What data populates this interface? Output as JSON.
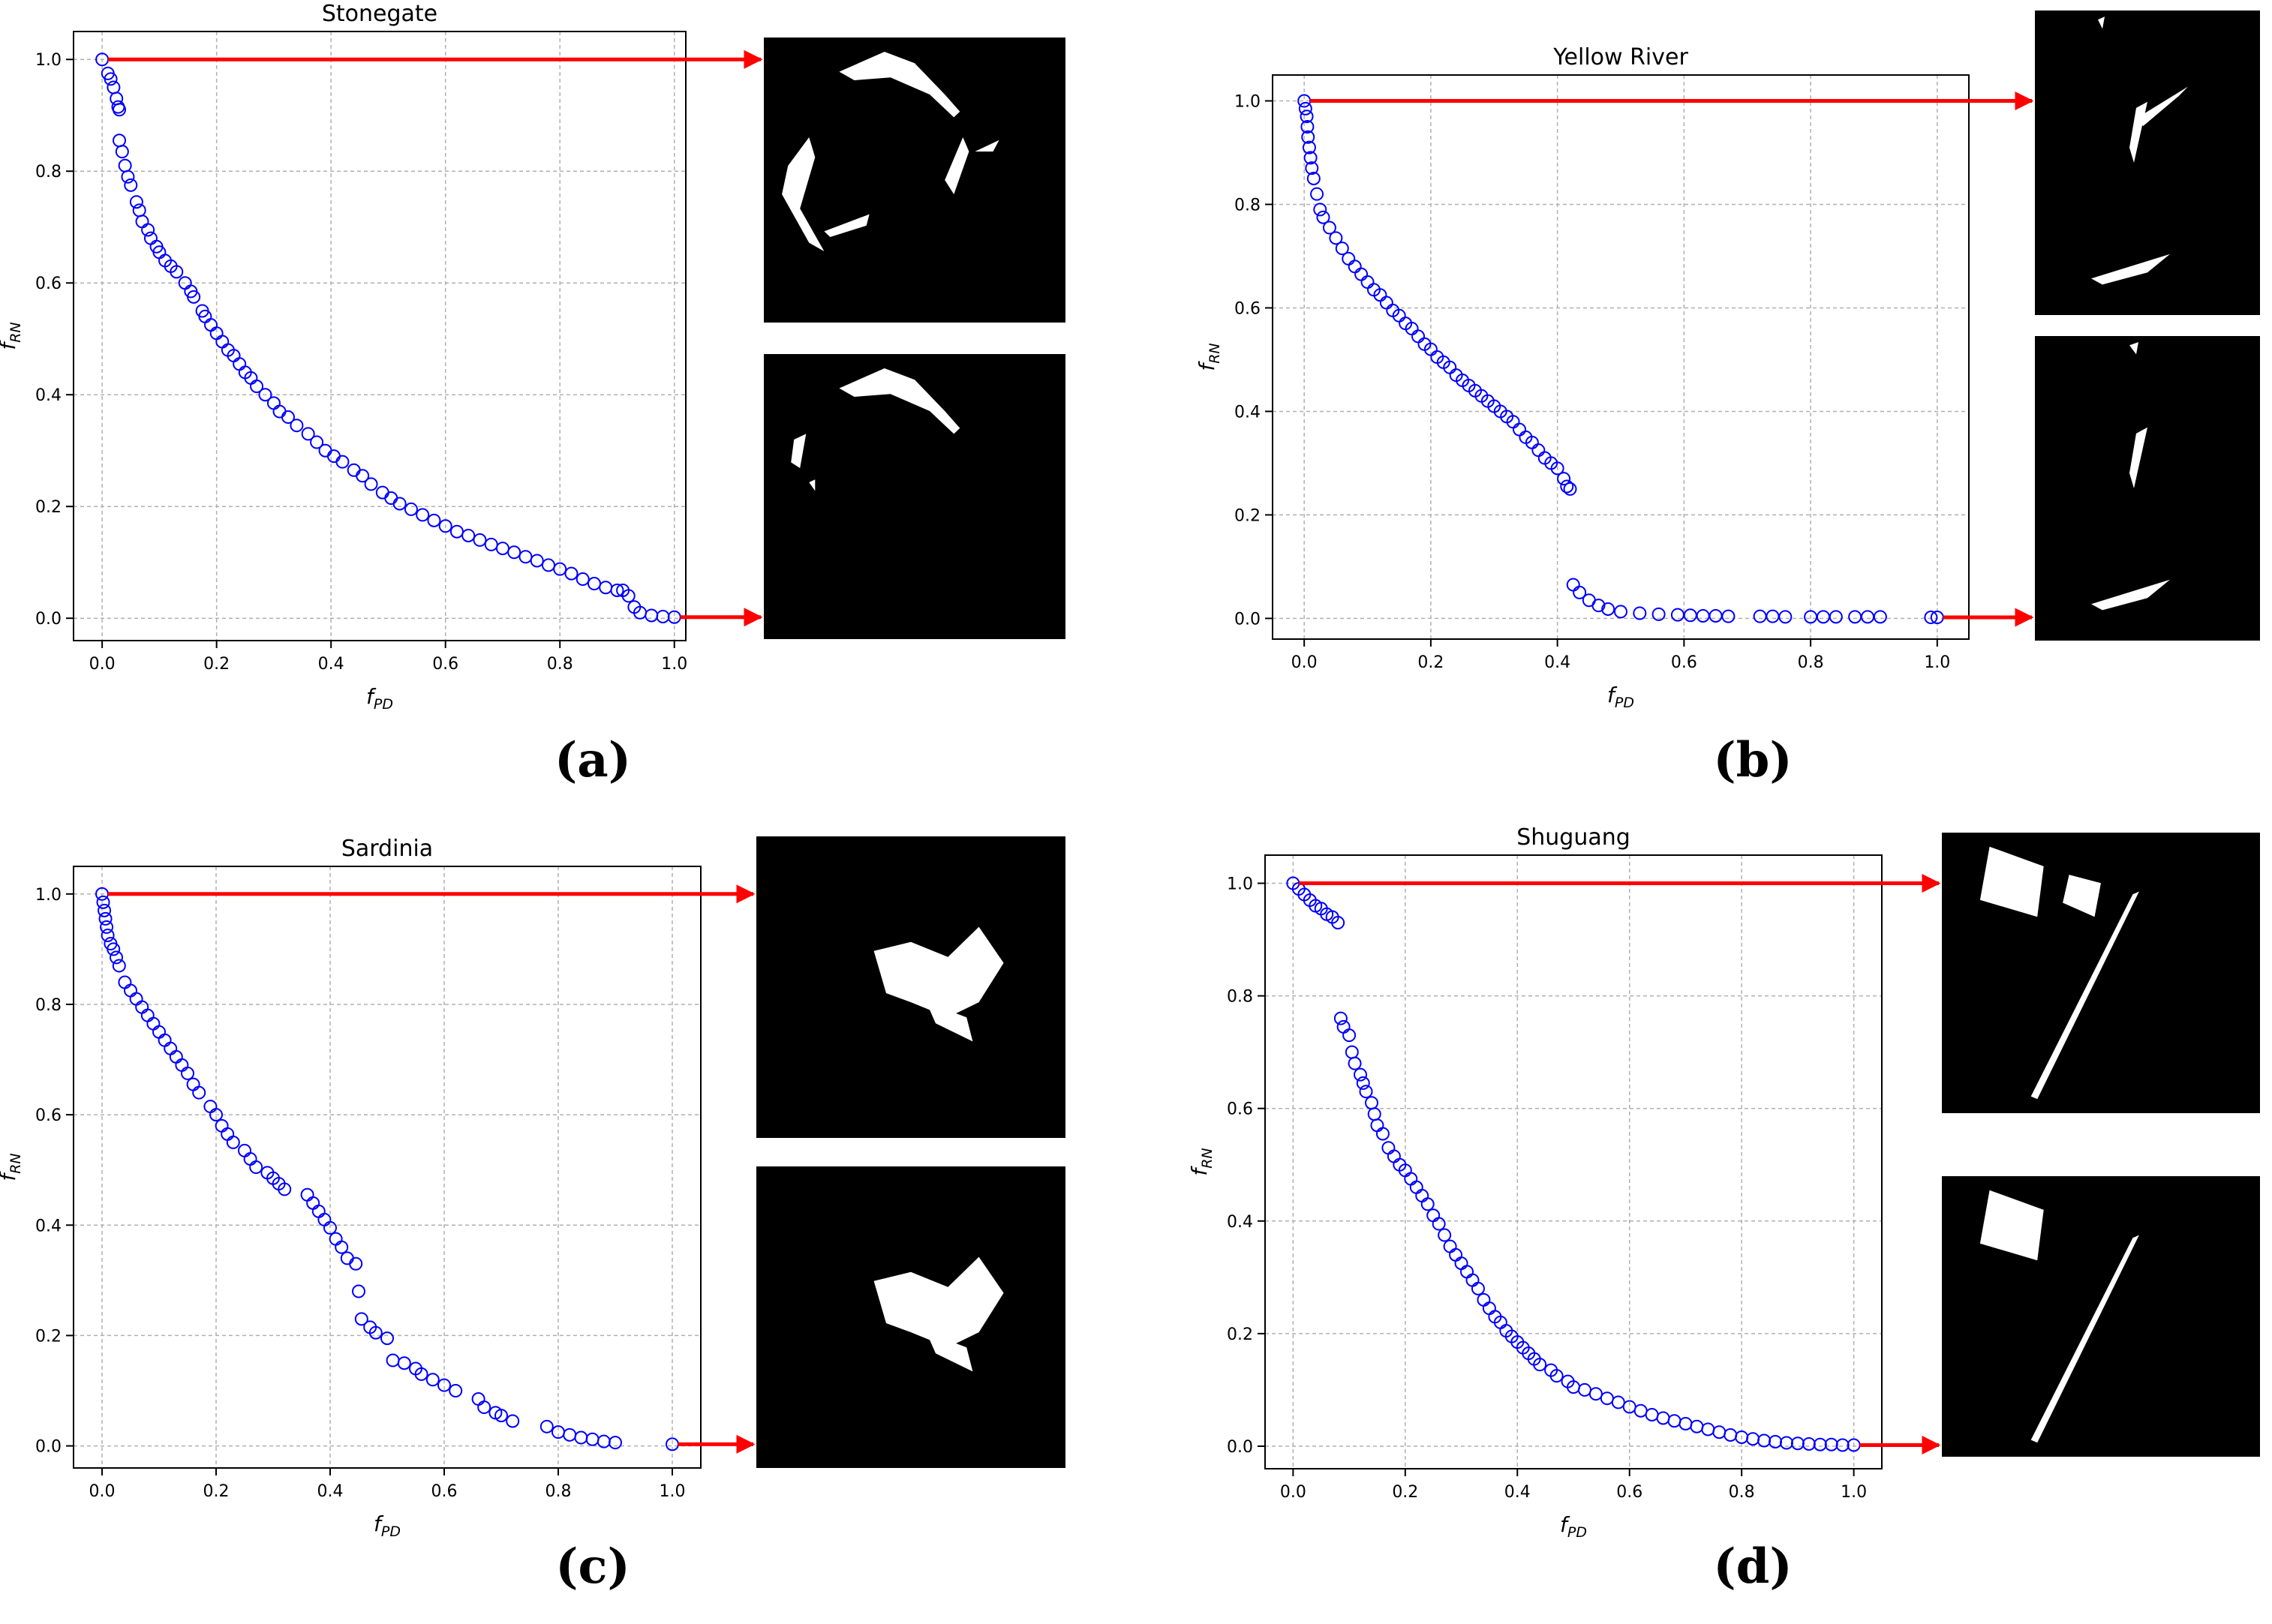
{
  "figure": {
    "panel_labels": [
      "(a)",
      "(b)",
      "(c)",
      "(d)"
    ],
    "x_axis_label": "f_PD",
    "y_axis_label": "f_RN",
    "marker_color": "#0000ff",
    "arrow_color": "#ff0000",
    "grid_color": "#b0b0b0"
  },
  "chart_data": [
    {
      "type": "scatter",
      "title": "Stonegate",
      "xlabel": "f_PD",
      "ylabel": "f_RN",
      "xlim": [
        -0.05,
        1.02
      ],
      "ylim": [
        -0.04,
        1.05
      ],
      "xticks": [
        "0.0",
        "0.2",
        "0.4",
        "0.6",
        "0.8",
        "1.0"
      ],
      "yticks": [
        "0.0",
        "0.2",
        "0.4",
        "0.6",
        "0.8",
        "1.0"
      ],
      "grid": true,
      "points": [
        [
          0,
          1
        ],
        [
          0.01,
          0.975
        ],
        [
          0.015,
          0.965
        ],
        [
          0.02,
          0.95
        ],
        [
          0.025,
          0.93
        ],
        [
          0.028,
          0.915
        ],
        [
          0.03,
          0.91
        ],
        [
          0.03,
          0.855
        ],
        [
          0.035,
          0.835
        ],
        [
          0.04,
          0.81
        ],
        [
          0.045,
          0.79
        ],
        [
          0.05,
          0.775
        ],
        [
          0.06,
          0.745
        ],
        [
          0.065,
          0.73
        ],
        [
          0.07,
          0.71
        ],
        [
          0.08,
          0.695
        ],
        [
          0.085,
          0.68
        ],
        [
          0.095,
          0.665
        ],
        [
          0.1,
          0.655
        ],
        [
          0.11,
          0.64
        ],
        [
          0.12,
          0.63
        ],
        [
          0.13,
          0.62
        ],
        [
          0.145,
          0.6
        ],
        [
          0.155,
          0.585
        ],
        [
          0.16,
          0.575
        ],
        [
          0.175,
          0.55
        ],
        [
          0.18,
          0.54
        ],
        [
          0.19,
          0.525
        ],
        [
          0.2,
          0.51
        ],
        [
          0.21,
          0.495
        ],
        [
          0.22,
          0.48
        ],
        [
          0.23,
          0.47
        ],
        [
          0.24,
          0.455
        ],
        [
          0.25,
          0.44
        ],
        [
          0.26,
          0.43
        ],
        [
          0.27,
          0.415
        ],
        [
          0.285,
          0.4
        ],
        [
          0.3,
          0.385
        ],
        [
          0.31,
          0.37
        ],
        [
          0.325,
          0.36
        ],
        [
          0.34,
          0.345
        ],
        [
          0.36,
          0.33
        ],
        [
          0.375,
          0.315
        ],
        [
          0.39,
          0.3
        ],
        [
          0.405,
          0.29
        ],
        [
          0.42,
          0.28
        ],
        [
          0.44,
          0.265
        ],
        [
          0.455,
          0.255
        ],
        [
          0.47,
          0.24
        ],
        [
          0.49,
          0.225
        ],
        [
          0.505,
          0.215
        ],
        [
          0.52,
          0.205
        ],
        [
          0.54,
          0.195
        ],
        [
          0.56,
          0.185
        ],
        [
          0.58,
          0.175
        ],
        [
          0.6,
          0.165
        ],
        [
          0.62,
          0.155
        ],
        [
          0.64,
          0.148
        ],
        [
          0.66,
          0.14
        ],
        [
          0.68,
          0.132
        ],
        [
          0.7,
          0.125
        ],
        [
          0.72,
          0.118
        ],
        [
          0.74,
          0.11
        ],
        [
          0.76,
          0.103
        ],
        [
          0.78,
          0.095
        ],
        [
          0.8,
          0.088
        ],
        [
          0.82,
          0.08
        ],
        [
          0.84,
          0.07
        ],
        [
          0.86,
          0.062
        ],
        [
          0.88,
          0.055
        ],
        [
          0.9,
          0.05
        ],
        [
          0.91,
          0.05
        ],
        [
          0.92,
          0.04
        ],
        [
          0.93,
          0.02
        ],
        [
          0.94,
          0.01
        ],
        [
          0.96,
          0.005
        ],
        [
          0.98,
          0.003
        ],
        [
          1.0,
          0.002
        ]
      ],
      "annotation_images": [
        "map-top",
        "map-bottom"
      ]
    },
    {
      "type": "scatter",
      "title": "Yellow River",
      "xlabel": "f_PD",
      "ylabel": "f_RN",
      "xlim": [
        -0.05,
        1.05
      ],
      "ylim": [
        -0.04,
        1.05
      ],
      "xticks": [
        "0.0",
        "0.2",
        "0.4",
        "0.6",
        "0.8",
        "1.0"
      ],
      "yticks": [
        "0.0",
        "0.2",
        "0.4",
        "0.6",
        "0.8",
        "1.0"
      ],
      "grid": true,
      "points": [
        [
          0,
          1
        ],
        [
          0.002,
          0.985
        ],
        [
          0.004,
          0.97
        ],
        [
          0.005,
          0.95
        ],
        [
          0.006,
          0.93
        ],
        [
          0.008,
          0.91
        ],
        [
          0.01,
          0.89
        ],
        [
          0.012,
          0.87
        ],
        [
          0.015,
          0.85
        ],
        [
          0.02,
          0.82
        ],
        [
          0.025,
          0.79
        ],
        [
          0.03,
          0.775
        ],
        [
          0.04,
          0.755
        ],
        [
          0.05,
          0.735
        ],
        [
          0.06,
          0.715
        ],
        [
          0.07,
          0.695
        ],
        [
          0.08,
          0.68
        ],
        [
          0.09,
          0.665
        ],
        [
          0.1,
          0.65
        ],
        [
          0.11,
          0.635
        ],
        [
          0.12,
          0.625
        ],
        [
          0.13,
          0.61
        ],
        [
          0.14,
          0.595
        ],
        [
          0.15,
          0.585
        ],
        [
          0.16,
          0.57
        ],
        [
          0.17,
          0.56
        ],
        [
          0.18,
          0.545
        ],
        [
          0.19,
          0.53
        ],
        [
          0.2,
          0.52
        ],
        [
          0.21,
          0.505
        ],
        [
          0.22,
          0.495
        ],
        [
          0.23,
          0.485
        ],
        [
          0.24,
          0.47
        ],
        [
          0.25,
          0.46
        ],
        [
          0.26,
          0.45
        ],
        [
          0.27,
          0.44
        ],
        [
          0.28,
          0.43
        ],
        [
          0.29,
          0.42
        ],
        [
          0.3,
          0.41
        ],
        [
          0.31,
          0.4
        ],
        [
          0.32,
          0.39
        ],
        [
          0.33,
          0.38
        ],
        [
          0.34,
          0.365
        ],
        [
          0.35,
          0.35
        ],
        [
          0.36,
          0.34
        ],
        [
          0.37,
          0.325
        ],
        [
          0.38,
          0.31
        ],
        [
          0.39,
          0.3
        ],
        [
          0.4,
          0.29
        ],
        [
          0.41,
          0.27
        ],
        [
          0.415,
          0.255
        ],
        [
          0.42,
          0.25
        ],
        [
          0.425,
          0.065
        ],
        [
          0.435,
          0.05
        ],
        [
          0.45,
          0.035
        ],
        [
          0.465,
          0.025
        ],
        [
          0.48,
          0.018
        ],
        [
          0.5,
          0.013
        ],
        [
          0.53,
          0.01
        ],
        [
          0.56,
          0.008
        ],
        [
          0.59,
          0.007
        ],
        [
          0.61,
          0.006
        ],
        [
          0.63,
          0.005
        ],
        [
          0.65,
          0.005
        ],
        [
          0.67,
          0.004
        ],
        [
          0.72,
          0.004
        ],
        [
          0.74,
          0.004
        ],
        [
          0.76,
          0.003
        ],
        [
          0.8,
          0.003
        ],
        [
          0.82,
          0.003
        ],
        [
          0.84,
          0.003
        ],
        [
          0.87,
          0.003
        ],
        [
          0.89,
          0.003
        ],
        [
          0.91,
          0.003
        ],
        [
          0.99,
          0.002
        ],
        [
          1.0,
          0.002
        ]
      ],
      "annotation_images": [
        "map-top",
        "map-bottom"
      ]
    },
    {
      "type": "scatter",
      "title": "Sardinia",
      "xlabel": "f_PD",
      "ylabel": "f_RN",
      "xlim": [
        -0.05,
        1.05
      ],
      "ylim": [
        -0.04,
        1.05
      ],
      "xticks": [
        "0.0",
        "0.2",
        "0.4",
        "0.6",
        "0.8",
        "1.0"
      ],
      "yticks": [
        "0.0",
        "0.2",
        "0.4",
        "0.6",
        "0.8",
        "1.0"
      ],
      "grid": true,
      "points": [
        [
          0,
          1
        ],
        [
          0.002,
          0.985
        ],
        [
          0.004,
          0.97
        ],
        [
          0.006,
          0.955
        ],
        [
          0.008,
          0.94
        ],
        [
          0.01,
          0.925
        ],
        [
          0.015,
          0.91
        ],
        [
          0.02,
          0.9
        ],
        [
          0.025,
          0.885
        ],
        [
          0.03,
          0.87
        ],
        [
          0.04,
          0.84
        ],
        [
          0.05,
          0.825
        ],
        [
          0.06,
          0.81
        ],
        [
          0.07,
          0.795
        ],
        [
          0.08,
          0.78
        ],
        [
          0.09,
          0.765
        ],
        [
          0.1,
          0.75
        ],
        [
          0.11,
          0.735
        ],
        [
          0.12,
          0.72
        ],
        [
          0.13,
          0.705
        ],
        [
          0.14,
          0.69
        ],
        [
          0.15,
          0.675
        ],
        [
          0.16,
          0.655
        ],
        [
          0.17,
          0.64
        ],
        [
          0.19,
          0.615
        ],
        [
          0.2,
          0.6
        ],
        [
          0.21,
          0.58
        ],
        [
          0.22,
          0.565
        ],
        [
          0.23,
          0.55
        ],
        [
          0.25,
          0.535
        ],
        [
          0.26,
          0.52
        ],
        [
          0.27,
          0.505
        ],
        [
          0.29,
          0.495
        ],
        [
          0.3,
          0.485
        ],
        [
          0.31,
          0.475
        ],
        [
          0.32,
          0.465
        ],
        [
          0.36,
          0.455
        ],
        [
          0.37,
          0.44
        ],
        [
          0.38,
          0.425
        ],
        [
          0.39,
          0.41
        ],
        [
          0.4,
          0.395
        ],
        [
          0.41,
          0.375
        ],
        [
          0.42,
          0.36
        ],
        [
          0.43,
          0.34
        ],
        [
          0.445,
          0.33
        ],
        [
          0.45,
          0.28
        ],
        [
          0.455,
          0.23
        ],
        [
          0.47,
          0.215
        ],
        [
          0.48,
          0.205
        ],
        [
          0.5,
          0.195
        ],
        [
          0.51,
          0.155
        ],
        [
          0.53,
          0.15
        ],
        [
          0.55,
          0.14
        ],
        [
          0.56,
          0.13
        ],
        [
          0.58,
          0.12
        ],
        [
          0.6,
          0.11
        ],
        [
          0.62,
          0.1
        ],
        [
          0.66,
          0.085
        ],
        [
          0.67,
          0.07
        ],
        [
          0.69,
          0.06
        ],
        [
          0.7,
          0.055
        ],
        [
          0.72,
          0.045
        ],
        [
          0.78,
          0.035
        ],
        [
          0.8,
          0.025
        ],
        [
          0.82,
          0.02
        ],
        [
          0.84,
          0.015
        ],
        [
          0.86,
          0.012
        ],
        [
          0.88,
          0.008
        ],
        [
          0.9,
          0.006
        ],
        [
          1.0,
          0.003
        ]
      ],
      "annotation_images": [
        "map-top",
        "map-bottom"
      ]
    },
    {
      "type": "scatter",
      "title": "Shuguang",
      "xlabel": "f_PD",
      "ylabel": "f_RN",
      "xlim": [
        -0.05,
        1.05
      ],
      "ylim": [
        -0.04,
        1.05
      ],
      "xticks": [
        "0.0",
        "0.2",
        "0.4",
        "0.6",
        "0.8",
        "1.0"
      ],
      "yticks": [
        "0.0",
        "0.2",
        "0.4",
        "0.6",
        "0.8",
        "1.0"
      ],
      "grid": true,
      "points": [
        [
          0,
          1
        ],
        [
          0.01,
          0.99
        ],
        [
          0.02,
          0.98
        ],
        [
          0.03,
          0.97
        ],
        [
          0.04,
          0.96
        ],
        [
          0.05,
          0.955
        ],
        [
          0.06,
          0.945
        ],
        [
          0.07,
          0.94
        ],
        [
          0.08,
          0.93
        ],
        [
          0.085,
          0.76
        ],
        [
          0.09,
          0.745
        ],
        [
          0.1,
          0.73
        ],
        [
          0.105,
          0.7
        ],
        [
          0.11,
          0.68
        ],
        [
          0.12,
          0.66
        ],
        [
          0.125,
          0.645
        ],
        [
          0.13,
          0.63
        ],
        [
          0.14,
          0.61
        ],
        [
          0.145,
          0.59
        ],
        [
          0.15,
          0.57
        ],
        [
          0.16,
          0.555
        ],
        [
          0.17,
          0.53
        ],
        [
          0.18,
          0.515
        ],
        [
          0.19,
          0.5
        ],
        [
          0.2,
          0.49
        ],
        [
          0.21,
          0.475
        ],
        [
          0.22,
          0.46
        ],
        [
          0.23,
          0.445
        ],
        [
          0.24,
          0.43
        ],
        [
          0.25,
          0.41
        ],
        [
          0.26,
          0.395
        ],
        [
          0.27,
          0.375
        ],
        [
          0.28,
          0.355
        ],
        [
          0.29,
          0.34
        ],
        [
          0.3,
          0.325
        ],
        [
          0.31,
          0.31
        ],
        [
          0.32,
          0.295
        ],
        [
          0.33,
          0.28
        ],
        [
          0.34,
          0.26
        ],
        [
          0.35,
          0.245
        ],
        [
          0.36,
          0.23
        ],
        [
          0.37,
          0.22
        ],
        [
          0.38,
          0.205
        ],
        [
          0.39,
          0.195
        ],
        [
          0.4,
          0.185
        ],
        [
          0.41,
          0.175
        ],
        [
          0.42,
          0.165
        ],
        [
          0.43,
          0.155
        ],
        [
          0.44,
          0.145
        ],
        [
          0.46,
          0.135
        ],
        [
          0.47,
          0.125
        ],
        [
          0.49,
          0.115
        ],
        [
          0.5,
          0.105
        ],
        [
          0.52,
          0.1
        ],
        [
          0.54,
          0.093
        ],
        [
          0.56,
          0.085
        ],
        [
          0.58,
          0.078
        ],
        [
          0.6,
          0.07
        ],
        [
          0.62,
          0.063
        ],
        [
          0.64,
          0.056
        ],
        [
          0.66,
          0.05
        ],
        [
          0.68,
          0.045
        ],
        [
          0.7,
          0.04
        ],
        [
          0.72,
          0.035
        ],
        [
          0.74,
          0.03
        ],
        [
          0.76,
          0.025
        ],
        [
          0.78,
          0.02
        ],
        [
          0.8,
          0.016
        ],
        [
          0.82,
          0.013
        ],
        [
          0.84,
          0.01
        ],
        [
          0.86,
          0.008
        ],
        [
          0.88,
          0.006
        ],
        [
          0.9,
          0.005
        ],
        [
          0.92,
          0.004
        ],
        [
          0.94,
          0.003
        ],
        [
          0.96,
          0.003
        ],
        [
          0.98,
          0.002
        ],
        [
          1.0,
          0.002
        ]
      ],
      "annotation_images": [
        "map-top",
        "map-bottom"
      ]
    }
  ]
}
